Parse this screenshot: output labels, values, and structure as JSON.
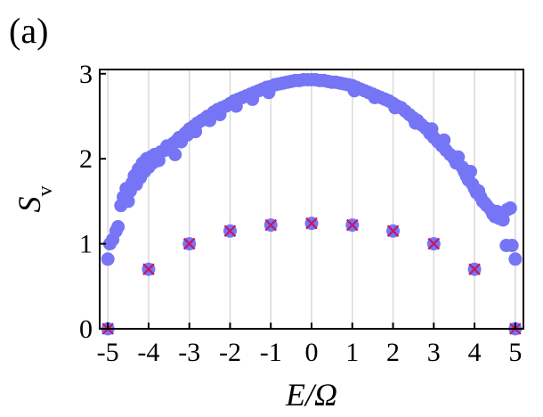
{
  "figure": {
    "panel_label": "(a)"
  },
  "chart_data": {
    "type": "scatter",
    "xlabel": "E/Ω",
    "ylabel": "S_v",
    "xlim": [
      -5.2,
      5.2
    ],
    "ylim": [
      0,
      3.05
    ],
    "xticks": [
      -5,
      -4,
      -3,
      -2,
      -1,
      0,
      1,
      2,
      3,
      4,
      5
    ],
    "xtick_labels": [
      "-5",
      "-4",
      "-3",
      "-2",
      "-1",
      "0",
      "1",
      "2",
      "3",
      "4",
      "5"
    ],
    "yticks": [
      0,
      1,
      2,
      3
    ],
    "ytick_labels": [
      "0",
      "1",
      "2",
      "3"
    ],
    "grid": "vertical",
    "series": [
      {
        "marker": "filled-circle",
        "color": "#7575f5",
        "points": [
          [
            -5.0,
            0.82
          ],
          [
            -4.95,
            1.0
          ],
          [
            -4.88,
            1.05
          ],
          [
            -4.8,
            1.15
          ],
          [
            -4.75,
            1.2
          ],
          [
            -4.68,
            1.45
          ],
          [
            -4.62,
            1.55
          ],
          [
            -4.55,
            1.65
          ],
          [
            -4.5,
            1.5
          ],
          [
            -4.45,
            1.62
          ],
          [
            -4.4,
            1.72
          ],
          [
            -4.35,
            1.8
          ],
          [
            -4.3,
            1.7
          ],
          [
            -4.25,
            1.88
          ],
          [
            -4.2,
            1.78
          ],
          [
            -4.15,
            1.95
          ],
          [
            -4.1,
            1.85
          ],
          [
            -4.05,
            2.0
          ],
          [
            -4.0,
            1.9
          ],
          [
            -3.95,
            2.02
          ],
          [
            -3.9,
            1.95
          ],
          [
            -3.85,
            2.05
          ],
          [
            -3.8,
            2.0
          ],
          [
            -3.75,
            1.98
          ],
          [
            -3.7,
            2.08
          ],
          [
            -3.6,
            2.1
          ],
          [
            -3.55,
            2.15
          ],
          [
            -3.5,
            2.12
          ],
          [
            -3.4,
            2.18
          ],
          [
            -3.35,
            2.05
          ],
          [
            -3.3,
            2.22
          ],
          [
            -3.25,
            2.25
          ],
          [
            -3.2,
            2.2
          ],
          [
            -3.1,
            2.3
          ],
          [
            -3.05,
            2.28
          ],
          [
            -3.0,
            2.35
          ],
          [
            -2.9,
            2.38
          ],
          [
            -2.85,
            2.32
          ],
          [
            -2.8,
            2.42
          ],
          [
            -2.7,
            2.45
          ],
          [
            -2.6,
            2.48
          ],
          [
            -2.55,
            2.5
          ],
          [
            -2.5,
            2.45
          ],
          [
            -2.4,
            2.55
          ],
          [
            -2.3,
            2.58
          ],
          [
            -2.25,
            2.52
          ],
          [
            -2.2,
            2.6
          ],
          [
            -2.1,
            2.62
          ],
          [
            -2.0,
            2.65
          ],
          [
            -1.9,
            2.68
          ],
          [
            -1.85,
            2.62
          ],
          [
            -1.8,
            2.7
          ],
          [
            -1.7,
            2.72
          ],
          [
            -1.6,
            2.74
          ],
          [
            -1.5,
            2.76
          ],
          [
            -1.45,
            2.7
          ],
          [
            -1.4,
            2.78
          ],
          [
            -1.3,
            2.8
          ],
          [
            -1.2,
            2.82
          ],
          [
            -1.1,
            2.84
          ],
          [
            -1.05,
            2.78
          ],
          [
            -1.0,
            2.85
          ],
          [
            -0.9,
            2.87
          ],
          [
            -0.8,
            2.88
          ],
          [
            -0.7,
            2.89
          ],
          [
            -0.6,
            2.9
          ],
          [
            -0.5,
            2.91
          ],
          [
            -0.4,
            2.92
          ],
          [
            -0.3,
            2.92
          ],
          [
            -0.2,
            2.93
          ],
          [
            -0.1,
            2.93
          ],
          [
            0.0,
            2.93
          ],
          [
            0.1,
            2.93
          ],
          [
            0.2,
            2.92
          ],
          [
            0.3,
            2.92
          ],
          [
            0.4,
            2.91
          ],
          [
            0.5,
            2.9
          ],
          [
            0.6,
            2.9
          ],
          [
            0.7,
            2.89
          ],
          [
            0.8,
            2.88
          ],
          [
            0.9,
            2.87
          ],
          [
            1.0,
            2.86
          ],
          [
            1.05,
            2.8
          ],
          [
            1.1,
            2.84
          ],
          [
            1.2,
            2.82
          ],
          [
            1.3,
            2.8
          ],
          [
            1.4,
            2.78
          ],
          [
            1.5,
            2.76
          ],
          [
            1.55,
            2.72
          ],
          [
            1.6,
            2.74
          ],
          [
            1.7,
            2.72
          ],
          [
            1.8,
            2.7
          ],
          [
            1.9,
            2.68
          ],
          [
            2.0,
            2.65
          ],
          [
            2.05,
            2.6
          ],
          [
            2.1,
            2.62
          ],
          [
            2.2,
            2.6
          ],
          [
            2.3,
            2.56
          ],
          [
            2.4,
            2.52
          ],
          [
            2.5,
            2.48
          ],
          [
            2.55,
            2.42
          ],
          [
            2.6,
            2.45
          ],
          [
            2.7,
            2.4
          ],
          [
            2.8,
            2.36
          ],
          [
            2.9,
            2.3
          ],
          [
            2.95,
            2.35
          ],
          [
            3.0,
            2.25
          ],
          [
            3.1,
            2.2
          ],
          [
            3.2,
            2.15
          ],
          [
            3.25,
            2.22
          ],
          [
            3.3,
            2.1
          ],
          [
            3.4,
            2.05
          ],
          [
            3.5,
            2.0
          ],
          [
            3.55,
            1.95
          ],
          [
            3.6,
            2.02
          ],
          [
            3.7,
            1.9
          ],
          [
            3.75,
            1.85
          ],
          [
            3.8,
            1.8
          ],
          [
            3.85,
            1.75
          ],
          [
            3.9,
            1.85
          ],
          [
            3.95,
            1.7
          ],
          [
            4.0,
            1.65
          ],
          [
            4.05,
            1.6
          ],
          [
            4.1,
            1.62
          ],
          [
            4.15,
            1.55
          ],
          [
            4.2,
            1.5
          ],
          [
            4.25,
            1.48
          ],
          [
            4.3,
            1.45
          ],
          [
            4.4,
            1.4
          ],
          [
            4.45,
            1.35
          ],
          [
            4.5,
            1.32
          ],
          [
            4.55,
            1.38
          ],
          [
            4.6,
            1.3
          ],
          [
            4.7,
            1.28
          ],
          [
            4.8,
            1.4
          ],
          [
            4.88,
            1.42
          ],
          [
            4.78,
            0.98
          ],
          [
            4.92,
            0.98
          ],
          [
            5.0,
            0.82
          ]
        ]
      },
      {
        "marker": "circle-with-cross",
        "color": "#7575f5",
        "cross_color": "#c21867",
        "points": [
          [
            -5,
            0.0
          ],
          [
            -4,
            0.7
          ],
          [
            -3,
            1.0
          ],
          [
            -2,
            1.15
          ],
          [
            -1,
            1.22
          ],
          [
            0,
            1.24
          ],
          [
            1,
            1.22
          ],
          [
            2,
            1.15
          ],
          [
            3,
            1.0
          ],
          [
            4,
            0.7
          ],
          [
            5,
            0.0
          ]
        ]
      }
    ]
  }
}
